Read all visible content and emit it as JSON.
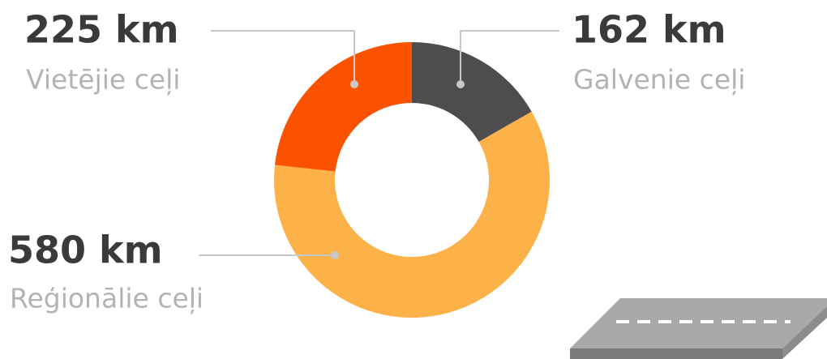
{
  "chart_data": {
    "type": "pie",
    "donut": true,
    "categories": [
      "Galvenie ceļi",
      "Reģionālie ceļi",
      "Vietējie ceļi"
    ],
    "values": [
      162,
      580,
      225
    ],
    "value_labels": [
      "162 km",
      "580 km",
      "225 km"
    ],
    "colors": [
      "#4d4d4d",
      "#fdb149",
      "#fb5200"
    ]
  }
}
